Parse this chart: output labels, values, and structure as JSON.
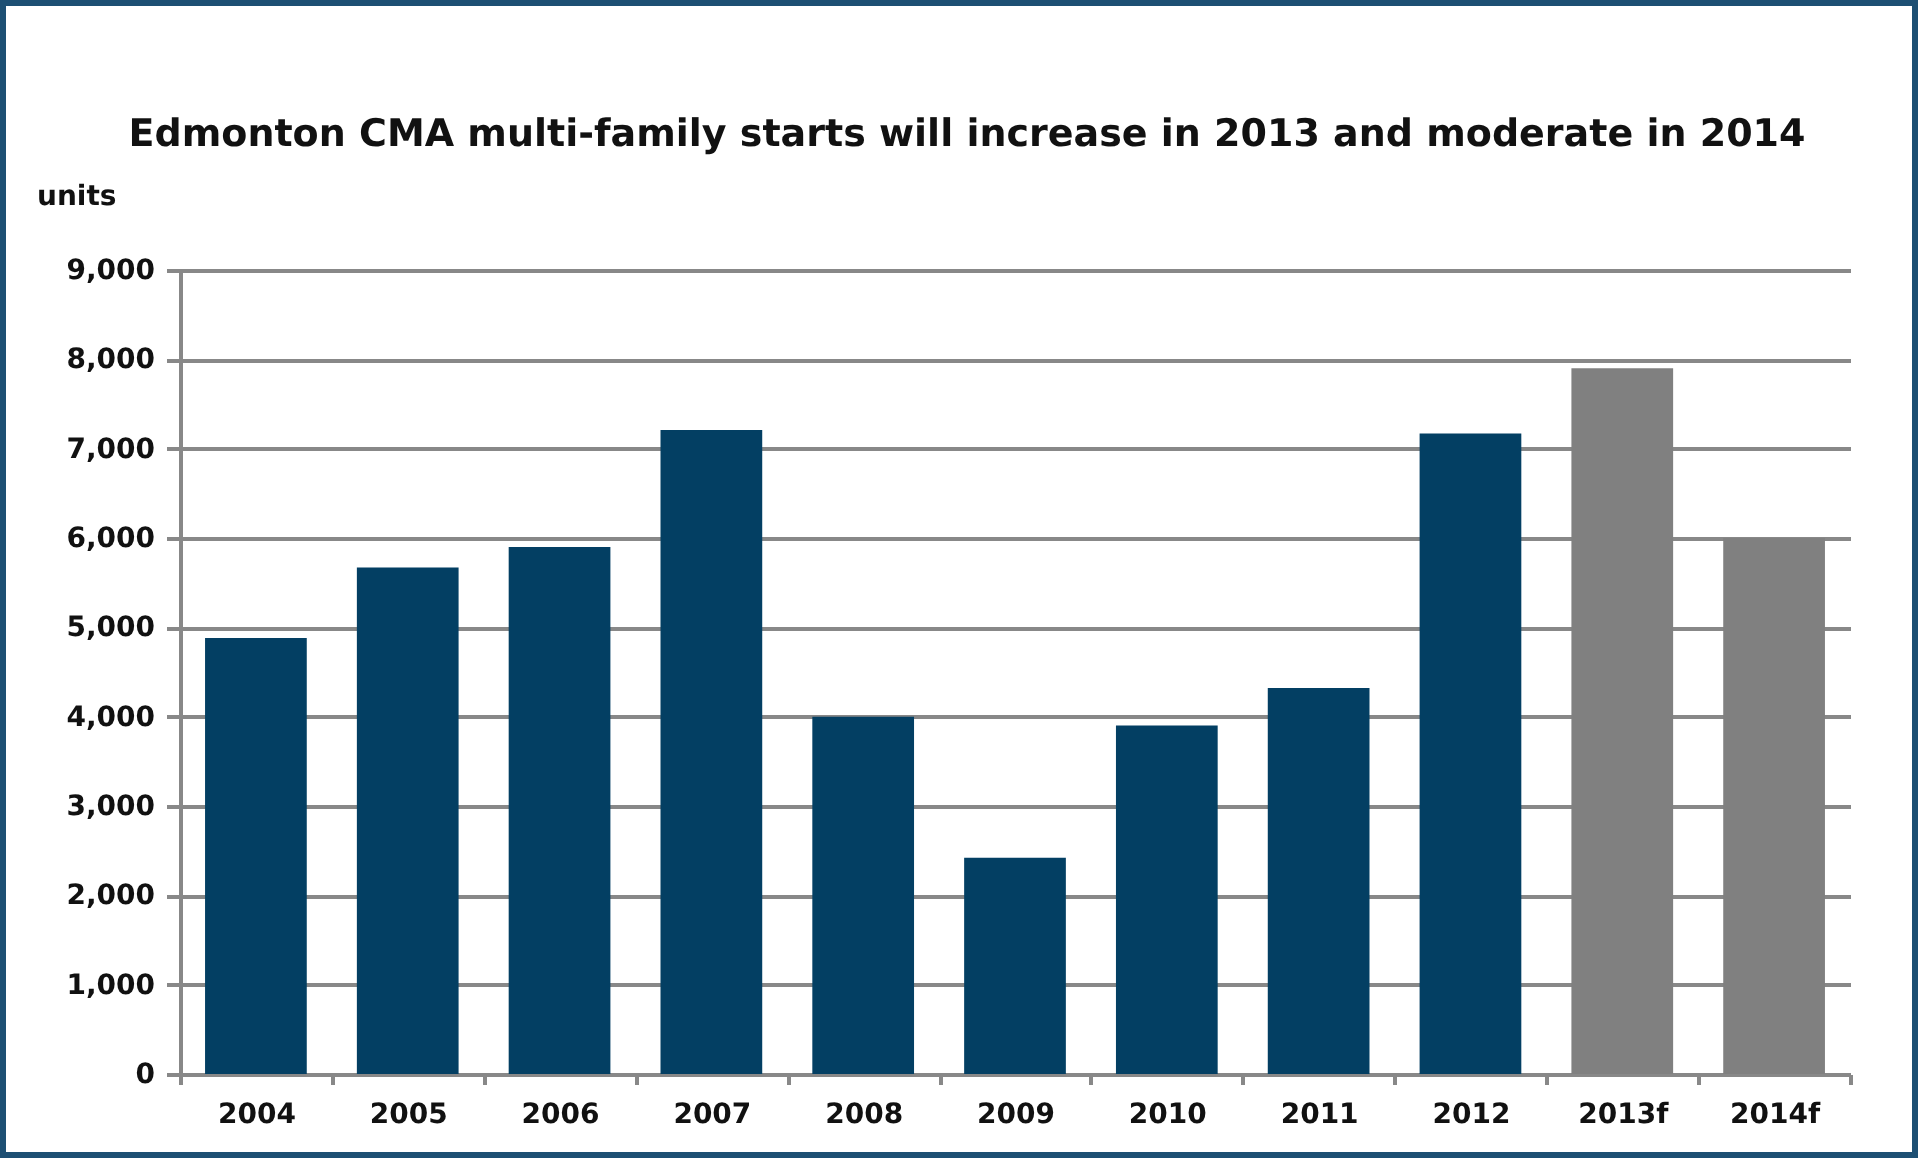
{
  "chart_data": {
    "type": "bar",
    "title": "Edmonton CMA multi-family starts will increase in 2013 and moderate in 2014",
    "ylabel": "units",
    "categories": [
      "2004",
      "2005",
      "2006",
      "2007",
      "2008",
      "2009",
      "2010",
      "2011",
      "2012",
      "2013f",
      "2014f"
    ],
    "values": [
      4880,
      5670,
      5900,
      7210,
      4000,
      2420,
      3900,
      4320,
      7170,
      7900,
      6000
    ],
    "colors": [
      "#033f63",
      "#033f63",
      "#033f63",
      "#033f63",
      "#033f63",
      "#033f63",
      "#033f63",
      "#033f63",
      "#033f63",
      "#808080",
      "#808080"
    ],
    "ylim": [
      0,
      9000
    ],
    "yticks": [
      0,
      {
        "value": 1000,
        "label": "1,000"
      },
      {
        "value": 2000,
        "label": "2,000"
      },
      {
        "value": 3000,
        "label": "3,000"
      },
      {
        "value": 4000,
        "label": "4,000"
      },
      {
        "value": 5000,
        "label": "5,000"
      },
      {
        "value": 6000,
        "label": "6,000"
      },
      {
        "value": 7000,
        "label": "7,000"
      },
      {
        "value": 8000,
        "label": "8,000"
      },
      {
        "value": 9000,
        "label": "9,000"
      }
    ],
    "grid": "y"
  }
}
